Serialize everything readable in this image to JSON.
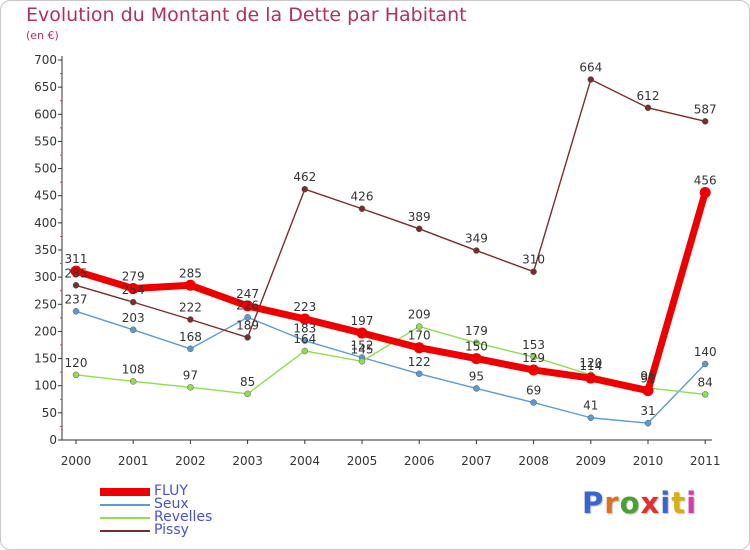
{
  "title": "Evolution du Montant de la Dette par Habitant",
  "subtitle": "(en €)",
  "brand": "Proxiti",
  "brand_colors": [
    "#3a66cc",
    "#e07020",
    "#4aa030",
    "#e03030",
    "#3a66cc",
    "#d6b010",
    "#d040a0"
  ],
  "chart_data": {
    "type": "line",
    "title": "Evolution du Montant de la Dette par Habitant",
    "subtitle": "(en €)",
    "categories": [
      "2000",
      "2001",
      "2002",
      "2003",
      "2004",
      "2005",
      "2006",
      "2007",
      "2008",
      "2009",
      "2010",
      "2011"
    ],
    "y_ticks": [
      "0",
      "50",
      "100",
      "150",
      "200",
      "250",
      "300",
      "350",
      "400",
      "450",
      "500",
      "550",
      "600",
      "650",
      "700"
    ],
    "ylim": [
      0,
      700
    ],
    "grid": false,
    "legend_position": "bottom-left",
    "series": [
      {
        "name": "FLUY",
        "color": "#ee0000",
        "values": [
          311,
          279,
          285,
          247,
          223,
          197,
          170,
          150,
          129,
          114,
          91,
          456
        ]
      },
      {
        "name": "Seux",
        "color": "#5b9bd5",
        "values": [
          237,
          203,
          168,
          226,
          183,
          152,
          122,
          95,
          69,
          41,
          31,
          140
        ]
      },
      {
        "name": "Revelles",
        "color": "#8ede4e",
        "values": [
          120,
          108,
          97,
          85,
          164,
          145,
          209,
          179,
          153,
          120,
          96,
          84
        ]
      },
      {
        "name": "Pissy",
        "color": "#7a2c2c",
        "values": [
          285,
          254,
          222,
          189,
          462,
          426,
          389,
          349,
          310,
          664,
          612,
          587
        ]
      }
    ]
  }
}
